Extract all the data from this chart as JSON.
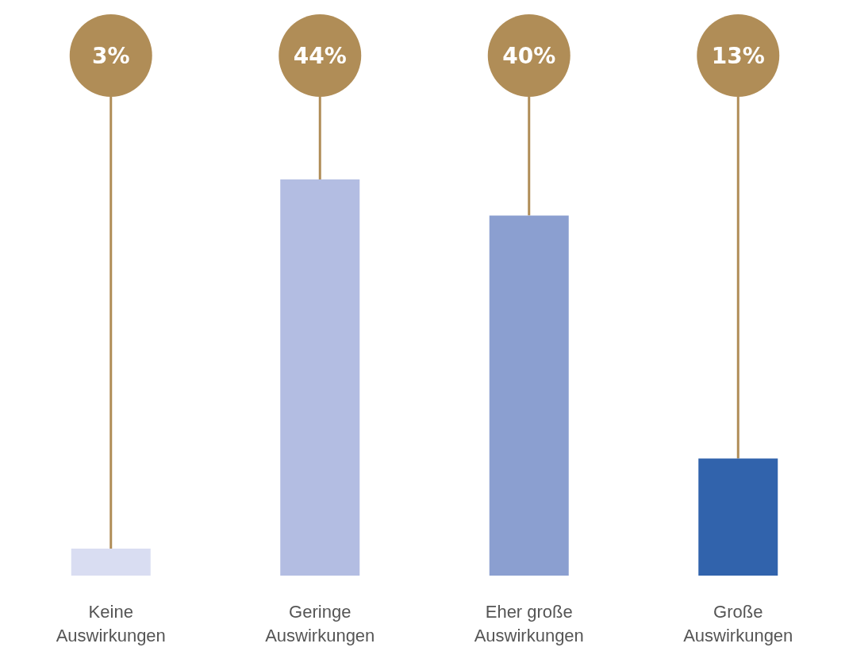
{
  "chart_data": {
    "type": "bar",
    "categories": [
      "Keine\nAuswirkungen",
      "Geringe\nAuswirkungen",
      "Eher große\nAuswirkungen",
      "Große\nAuswirkungen"
    ],
    "values": [
      3,
      44,
      40,
      13
    ],
    "value_labels": [
      "3%",
      "44%",
      "40%",
      "13%"
    ],
    "colors": [
      "#d9ddf2",
      "#b3bde2",
      "#8b9fd0",
      "#3163ac"
    ]
  }
}
